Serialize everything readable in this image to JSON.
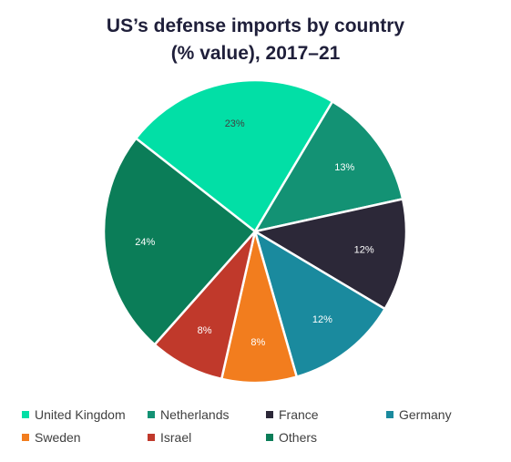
{
  "chart_data": {
    "type": "pie",
    "title_lines": [
      "US’s defense imports by country",
      "(% value), 2017–21"
    ],
    "slices": [
      {
        "label": "United Kingdom",
        "value": 23,
        "value_label": "23%",
        "color": "#02dfa6",
        "label_color": "#404040"
      },
      {
        "label": "Netherlands",
        "value": 13,
        "value_label": "13%",
        "color": "#139274",
        "label_color": "#ffffff"
      },
      {
        "label": "France",
        "value": 12,
        "value_label": "12%",
        "color": "#2c2838",
        "label_color": "#ffffff"
      },
      {
        "label": "Germany",
        "value": 12,
        "value_label": "12%",
        "color": "#1a8a9e",
        "label_color": "#ffffff"
      },
      {
        "label": "Sweden",
        "value": 8,
        "value_label": "8%",
        "color": "#f27d1e",
        "label_color": "#ffffff"
      },
      {
        "label": "Israel",
        "value": 8,
        "value_label": "8%",
        "color": "#c0392b",
        "label_color": "#ffffff"
      },
      {
        "label": "Others",
        "value": 24,
        "value_label": "24%",
        "color": "#0b7d58",
        "label_color": "#ffffff"
      }
    ],
    "legend_position": "bottom"
  }
}
